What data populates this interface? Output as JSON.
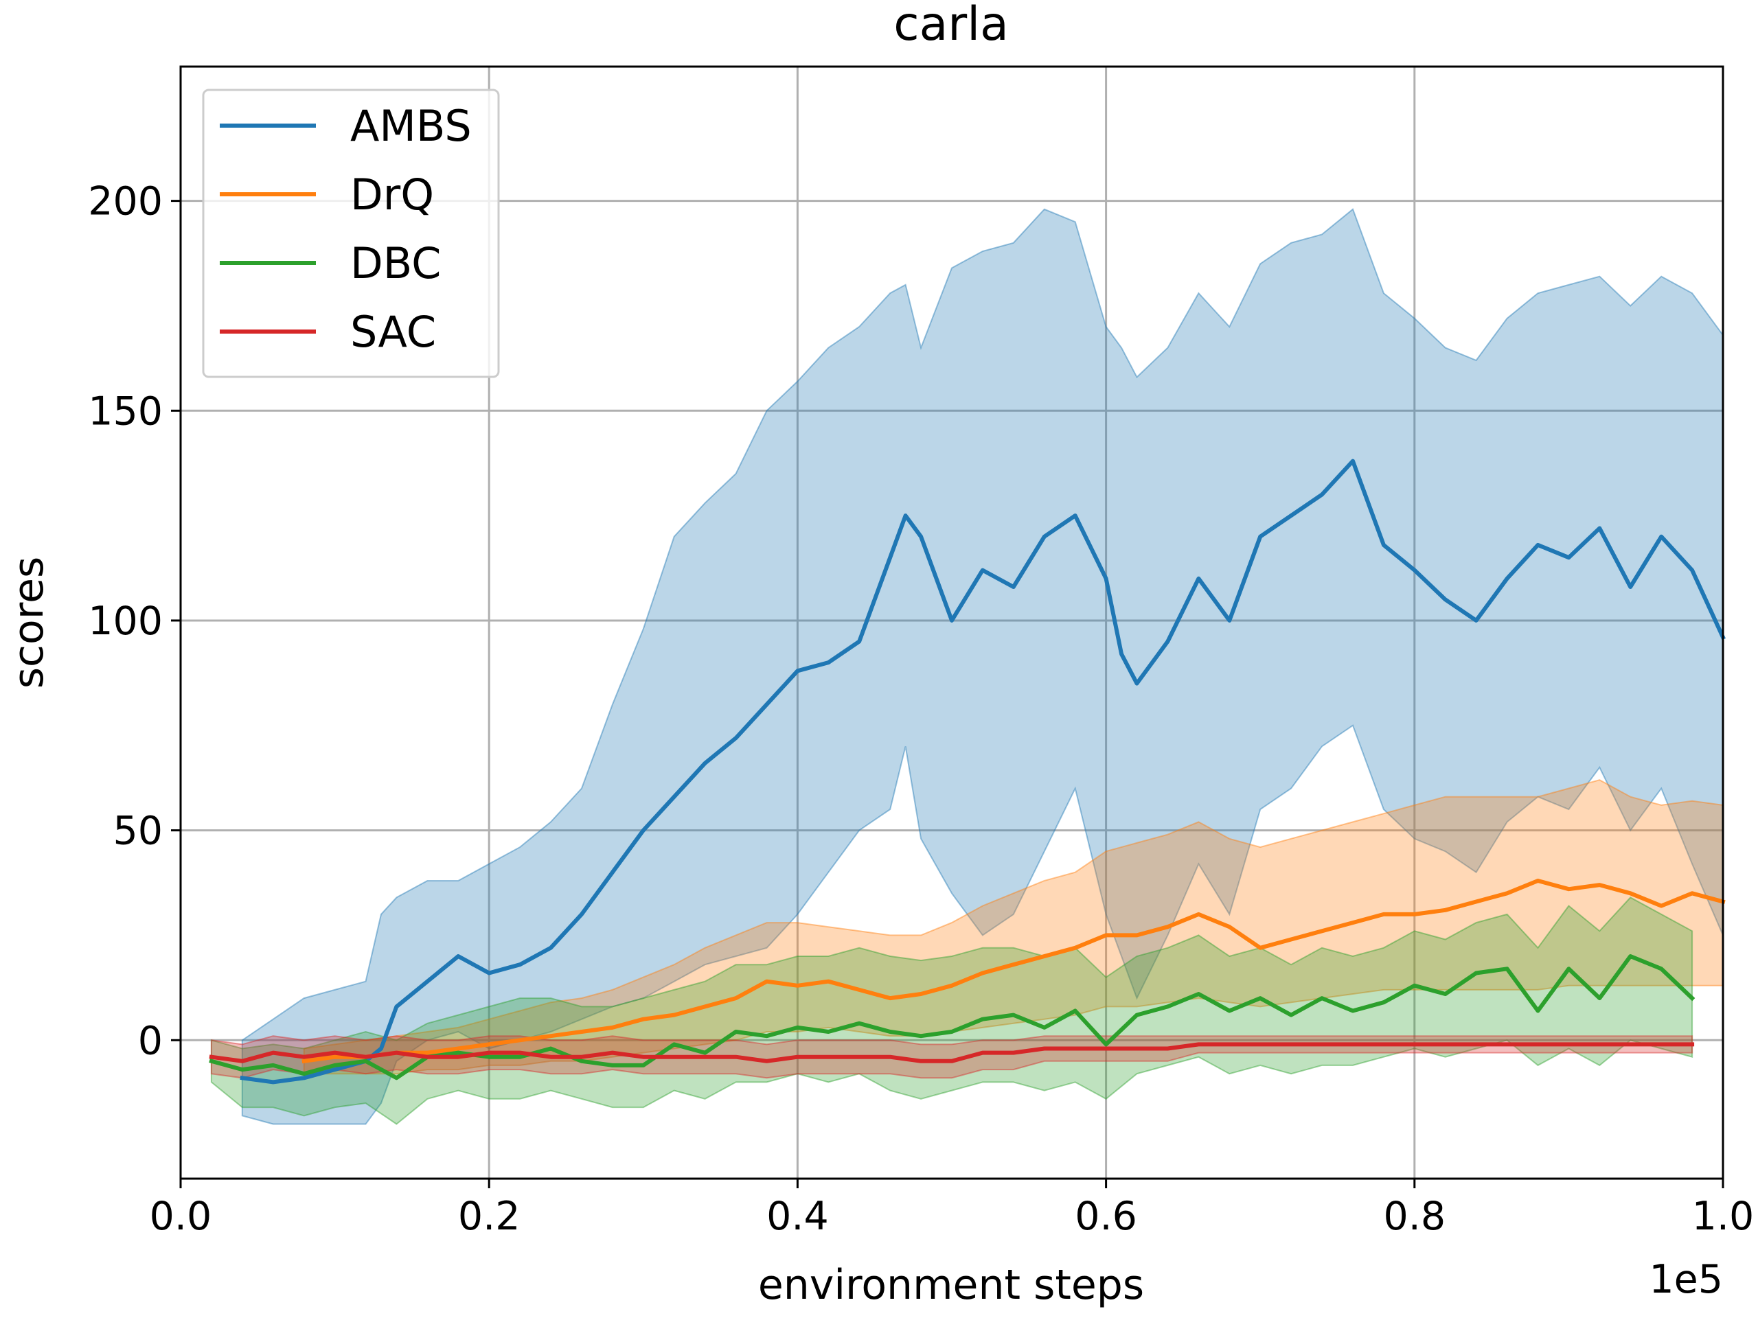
{
  "chart_data": {
    "type": "line",
    "title": "carla",
    "xlabel": "environment steps",
    "ylabel": "scores",
    "x_offset_label": "1e5",
    "xlim": [
      0.0,
      1.0
    ],
    "ylim": [
      -33,
      232
    ],
    "xticks": [
      0.0,
      0.2,
      0.4,
      0.6,
      0.8,
      1.0
    ],
    "xtick_labels": [
      "0.0",
      "0.2",
      "0.4",
      "0.6",
      "0.8",
      "1.0"
    ],
    "yticks": [
      0,
      50,
      100,
      150,
      200
    ],
    "ytick_labels": [
      "0",
      "50",
      "100",
      "150",
      "200"
    ],
    "grid": true,
    "legend_position": "top-left",
    "series": [
      {
        "name": "AMBS",
        "color": "#1f77b4",
        "x": [
          0.04,
          0.06,
          0.08,
          0.1,
          0.12,
          0.13,
          0.14,
          0.16,
          0.18,
          0.2,
          0.22,
          0.24,
          0.26,
          0.28,
          0.3,
          0.32,
          0.34,
          0.36,
          0.38,
          0.4,
          0.42,
          0.44,
          0.46,
          0.47,
          0.48,
          0.5,
          0.52,
          0.54,
          0.56,
          0.58,
          0.6,
          0.61,
          0.62,
          0.64,
          0.66,
          0.68,
          0.7,
          0.72,
          0.74,
          0.76,
          0.78,
          0.8,
          0.82,
          0.84,
          0.86,
          0.88,
          0.9,
          0.92,
          0.94,
          0.96,
          0.98,
          1.0
        ],
        "mean": [
          -9,
          -10,
          -9,
          -7,
          -5,
          -2,
          8,
          14,
          20,
          16,
          18,
          22,
          30,
          40,
          50,
          58,
          66,
          72,
          80,
          88,
          90,
          95,
          115,
          125,
          120,
          100,
          112,
          108,
          120,
          125,
          110,
          92,
          85,
          95,
          110,
          100,
          120,
          125,
          130,
          138,
          118,
          112,
          105,
          100,
          110,
          118,
          115,
          122,
          108,
          120,
          112,
          96
        ],
        "upper": [
          0,
          5,
          10,
          12,
          14,
          30,
          34,
          38,
          38,
          42,
          46,
          52,
          60,
          80,
          98,
          120,
          128,
          135,
          150,
          157,
          165,
          170,
          178,
          180,
          165,
          184,
          188,
          190,
          198,
          195,
          170,
          165,
          158,
          165,
          178,
          170,
          185,
          190,
          192,
          198,
          178,
          172,
          165,
          162,
          172,
          178,
          180,
          182,
          175,
          182,
          178,
          168
        ],
        "lower": [
          -18,
          -20,
          -20,
          -20,
          -20,
          -15,
          -5,
          0,
          2,
          -2,
          0,
          2,
          5,
          8,
          10,
          14,
          18,
          20,
          22,
          30,
          40,
          50,
          55,
          70,
          48,
          35,
          25,
          30,
          45,
          60,
          30,
          20,
          10,
          25,
          42,
          30,
          55,
          60,
          70,
          75,
          55,
          48,
          45,
          40,
          52,
          58,
          55,
          65,
          50,
          60,
          42,
          25
        ]
      },
      {
        "name": "DrQ",
        "color": "#ff7f0e",
        "x": [
          0.08,
          0.1,
          0.12,
          0.14,
          0.16,
          0.18,
          0.2,
          0.22,
          0.24,
          0.26,
          0.28,
          0.3,
          0.32,
          0.34,
          0.36,
          0.38,
          0.4,
          0.42,
          0.44,
          0.46,
          0.48,
          0.5,
          0.52,
          0.54,
          0.56,
          0.58,
          0.6,
          0.62,
          0.64,
          0.66,
          0.68,
          0.7,
          0.72,
          0.74,
          0.76,
          0.78,
          0.8,
          0.82,
          0.84,
          0.86,
          0.88,
          0.9,
          0.92,
          0.94,
          0.96,
          0.98,
          1.0
        ],
        "mean": [
          -5,
          -4,
          -4,
          -3,
          -3,
          -2,
          -1,
          0,
          1,
          2,
          3,
          5,
          6,
          8,
          10,
          14,
          13,
          14,
          12,
          10,
          11,
          13,
          16,
          18,
          20,
          22,
          25,
          25,
          27,
          30,
          27,
          22,
          24,
          26,
          28,
          30,
          30,
          31,
          33,
          35,
          38,
          36,
          37,
          35,
          32,
          35,
          33
        ],
        "upper": [
          -2,
          -1,
          0,
          1,
          2,
          3,
          5,
          7,
          9,
          10,
          12,
          15,
          18,
          22,
          25,
          28,
          28,
          27,
          26,
          25,
          25,
          28,
          32,
          35,
          38,
          40,
          45,
          47,
          49,
          52,
          48,
          46,
          48,
          50,
          52,
          54,
          56,
          58,
          58,
          58,
          58,
          60,
          62,
          58,
          56,
          57,
          56
        ],
        "lower": [
          -8,
          -8,
          -8,
          -8,
          -7,
          -7,
          -6,
          -6,
          -5,
          -5,
          -4,
          -3,
          -2,
          -1,
          0,
          2,
          2,
          3,
          2,
          1,
          1,
          2,
          3,
          4,
          5,
          6,
          8,
          8,
          9,
          10,
          9,
          8,
          9,
          10,
          11,
          12,
          12,
          12,
          12,
          12,
          12,
          13,
          13,
          13,
          13,
          13,
          13
        ]
      },
      {
        "name": "DBC",
        "color": "#2ca02c",
        "x": [
          0.02,
          0.04,
          0.06,
          0.08,
          0.1,
          0.12,
          0.14,
          0.16,
          0.18,
          0.2,
          0.22,
          0.24,
          0.26,
          0.28,
          0.3,
          0.32,
          0.34,
          0.36,
          0.38,
          0.4,
          0.42,
          0.44,
          0.46,
          0.48,
          0.5,
          0.52,
          0.54,
          0.56,
          0.58,
          0.6,
          0.62,
          0.64,
          0.66,
          0.68,
          0.7,
          0.72,
          0.74,
          0.76,
          0.78,
          0.8,
          0.82,
          0.84,
          0.86,
          0.88,
          0.9,
          0.92,
          0.94,
          0.96,
          0.98
        ],
        "mean": [
          -5,
          -7,
          -6,
          -8,
          -6,
          -5,
          -9,
          -4,
          -3,
          -4,
          -4,
          -2,
          -5,
          -6,
          -6,
          -1,
          -3,
          2,
          1,
          3,
          2,
          4,
          2,
          1,
          2,
          5,
          6,
          3,
          7,
          -1,
          6,
          8,
          11,
          7,
          10,
          6,
          10,
          7,
          9,
          13,
          11,
          16,
          17,
          7,
          17,
          10,
          20,
          17,
          10
        ],
        "upper": [
          0,
          -2,
          -1,
          -2,
          0,
          2,
          0,
          4,
          6,
          8,
          10,
          10,
          8,
          8,
          10,
          12,
          14,
          18,
          18,
          20,
          20,
          22,
          20,
          19,
          20,
          22,
          22,
          20,
          22,
          15,
          20,
          22,
          25,
          20,
          22,
          18,
          22,
          20,
          22,
          26,
          24,
          28,
          30,
          22,
          32,
          26,
          34,
          30,
          26
        ],
        "lower": [
          -10,
          -16,
          -16,
          -18,
          -16,
          -15,
          -20,
          -14,
          -12,
          -14,
          -14,
          -12,
          -14,
          -16,
          -16,
          -12,
          -14,
          -10,
          -10,
          -8,
          -10,
          -8,
          -12,
          -14,
          -12,
          -10,
          -10,
          -12,
          -10,
          -14,
          -8,
          -6,
          -4,
          -8,
          -6,
          -8,
          -6,
          -6,
          -4,
          -2,
          -4,
          -2,
          0,
          -6,
          -2,
          -6,
          0,
          -2,
          -4
        ]
      },
      {
        "name": "SAC",
        "color": "#d62728",
        "x": [
          0.02,
          0.04,
          0.06,
          0.08,
          0.1,
          0.12,
          0.14,
          0.16,
          0.18,
          0.2,
          0.22,
          0.24,
          0.26,
          0.28,
          0.3,
          0.32,
          0.34,
          0.36,
          0.38,
          0.4,
          0.42,
          0.44,
          0.46,
          0.48,
          0.5,
          0.52,
          0.54,
          0.56,
          0.58,
          0.6,
          0.62,
          0.64,
          0.66,
          0.68,
          0.7,
          0.72,
          0.74,
          0.76,
          0.78,
          0.8,
          0.82,
          0.84,
          0.86,
          0.88,
          0.9,
          0.92,
          0.94,
          0.96,
          0.98
        ],
        "mean": [
          -4,
          -5,
          -3,
          -4,
          -3,
          -4,
          -3,
          -4,
          -4,
          -3,
          -3,
          -4,
          -4,
          -3,
          -4,
          -4,
          -4,
          -4,
          -5,
          -4,
          -4,
          -4,
          -4,
          -5,
          -5,
          -3,
          -3,
          -2,
          -2,
          -2,
          -2,
          -2,
          -1,
          -1,
          -1,
          -1,
          -1,
          -1,
          -1,
          -1,
          -1,
          -1,
          -1,
          -1,
          -1,
          -1,
          -1,
          -1,
          -1
        ],
        "upper": [
          0,
          -1,
          1,
          0,
          1,
          0,
          1,
          0,
          0,
          1,
          1,
          0,
          0,
          1,
          0,
          0,
          0,
          0,
          -1,
          0,
          0,
          0,
          0,
          -1,
          -1,
          0,
          0,
          1,
          1,
          1,
          1,
          1,
          1,
          1,
          1,
          1,
          1,
          1,
          1,
          1,
          1,
          1,
          1,
          1,
          1,
          1,
          1,
          1,
          1
        ],
        "lower": [
          -8,
          -9,
          -7,
          -8,
          -7,
          -8,
          -7,
          -8,
          -8,
          -7,
          -7,
          -8,
          -8,
          -7,
          -8,
          -8,
          -8,
          -8,
          -9,
          -8,
          -8,
          -8,
          -8,
          -9,
          -9,
          -7,
          -7,
          -5,
          -5,
          -5,
          -5,
          -5,
          -3,
          -3,
          -3,
          -3,
          -3,
          -3,
          -3,
          -3,
          -3,
          -3,
          -3,
          -3,
          -3,
          -3,
          -3,
          -3,
          -3
        ]
      }
    ]
  }
}
